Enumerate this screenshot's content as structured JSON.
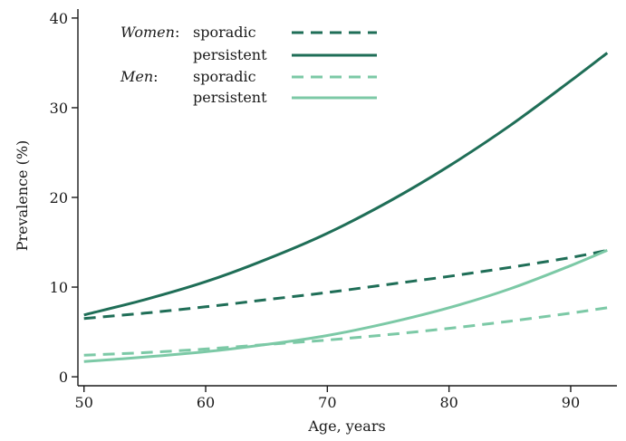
{
  "chart_data": {
    "type": "line",
    "title": "",
    "xlabel": "Age, years",
    "ylabel": "Prevalence (%)",
    "xlim": [
      49.5,
      93.8
    ],
    "ylim": [
      -1,
      41
    ],
    "xticks": [
      50,
      60,
      70,
      80,
      90
    ],
    "yticks": [
      0,
      10,
      20,
      30,
      40
    ],
    "grid": false,
    "legend_position": "top-left",
    "legend": [
      {
        "group": "Women",
        "separator": ":",
        "label": "sporadic",
        "series": 0
      },
      {
        "group": "",
        "separator": "",
        "label": "persistent",
        "series": 1
      },
      {
        "group": "Men",
        "separator": ":",
        "label": "sporadic",
        "series": 2
      },
      {
        "group": "",
        "separator": "",
        "label": "persistent",
        "series": 3
      }
    ],
    "series": [
      {
        "color": "#1f6e57",
        "dash": "dashed",
        "x": [
          50,
          55,
          60,
          65,
          70,
          75,
          80,
          85,
          90,
          93
        ],
        "y": [
          6.5,
          7.1,
          7.8,
          8.6,
          9.4,
          10.3,
          11.2,
          12.2,
          13.3,
          14.1
        ]
      },
      {
        "color": "#1f6e57",
        "dash": "solid",
        "x": [
          50,
          55,
          60,
          65,
          70,
          75,
          80,
          85,
          90,
          93
        ],
        "y": [
          6.9,
          8.6,
          10.6,
          13.1,
          16.0,
          19.5,
          23.5,
          28.0,
          33.0,
          36.1
        ]
      },
      {
        "color": "#7cc9a6",
        "dash": "dashed",
        "x": [
          50,
          55,
          60,
          65,
          70,
          75,
          80,
          85,
          90,
          93
        ],
        "y": [
          2.4,
          2.7,
          3.1,
          3.6,
          4.1,
          4.7,
          5.4,
          6.2,
          7.1,
          7.7
        ]
      },
      {
        "color": "#7cc9a6",
        "dash": "solid",
        "x": [
          50,
          55,
          60,
          65,
          70,
          75,
          80,
          85,
          90,
          93
        ],
        "y": [
          1.7,
          2.2,
          2.8,
          3.6,
          4.6,
          6.0,
          7.7,
          9.8,
          12.4,
          14.1
        ]
      }
    ]
  }
}
